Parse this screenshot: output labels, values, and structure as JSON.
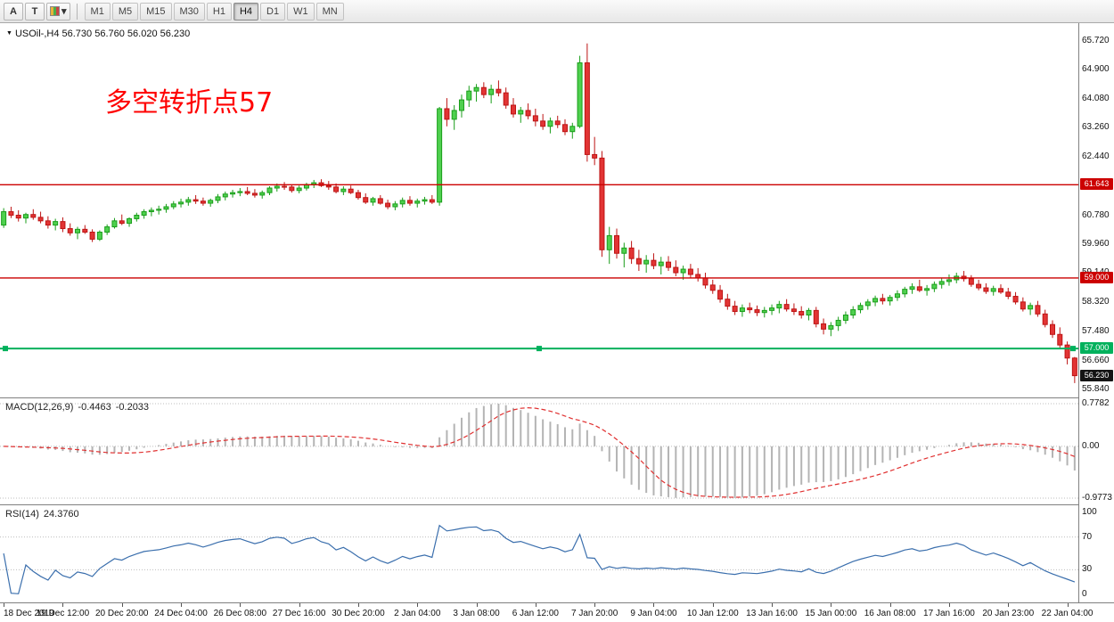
{
  "toolbar": {
    "tools": [
      {
        "id": "text-tool",
        "label": "A"
      },
      {
        "id": "crosshair-tool",
        "label": "T"
      },
      {
        "id": "objects-dropdown",
        "label": "▾"
      }
    ],
    "timeframes": [
      "M1",
      "M5",
      "M15",
      "M30",
      "H1",
      "H4",
      "D1",
      "W1",
      "MN"
    ],
    "active_timeframe": "H4"
  },
  "icons": {
    "chart_dropdown_icon": "▼",
    "dropdown_caret_icon": "▾"
  },
  "chart": {
    "title_symbol": "USOil-,H4",
    "title_ohlc": "56.730 56.760 56.020 56.230",
    "annotation": "多空转折点57"
  },
  "chart_data": {
    "type": "candlestick",
    "symbol": "USOil",
    "timeframe": "H4",
    "price_range": [
      55.613,
      66.225
    ],
    "price_axis_labels": [
      "65.720",
      "64.900",
      "64.080",
      "63.260",
      "62.440",
      "61.620",
      "60.780",
      "59.960",
      "59.140",
      "58.320",
      "57.480",
      "56.660",
      "55.840"
    ],
    "levels": [
      {
        "value": 61.643,
        "label": "61.643",
        "color": "#cc0000",
        "selected": false
      },
      {
        "value": 59.0,
        "label": "59.000",
        "color": "#cc0000",
        "selected": false
      },
      {
        "value": 57.0,
        "label": "57.000",
        "color": "#00b15c",
        "selected": true
      }
    ],
    "current_price": {
      "value": 56.23,
      "label": "56.230",
      "color": "#141414"
    },
    "bars_per_label": 8,
    "time_labels": [
      "18 Dec 2019",
      "19 Dec 12:00",
      "20 Dec 20:00",
      "24 Dec 04:00",
      "26 Dec 08:00",
      "27 Dec 16:00",
      "30 Dec 20:00",
      "2 Jan 04:00",
      "3 Jan 08:00",
      "6 Jan 12:00",
      "7 Jan 20:00",
      "9 Jan 04:00",
      "10 Jan 12:00",
      "13 Jan 16:00",
      "15 Jan 00:00",
      "16 Jan 08:00",
      "17 Jan 16:00",
      "20 Jan 23:00",
      "22 Jan 04:00"
    ],
    "candles": [
      [
        60.5,
        60.98,
        60.42,
        60.88
      ],
      [
        60.88,
        61.02,
        60.7,
        60.78
      ],
      [
        60.78,
        60.92,
        60.6,
        60.7
      ],
      [
        60.7,
        60.85,
        60.55,
        60.8
      ],
      [
        60.8,
        60.95,
        60.65,
        60.72
      ],
      [
        60.72,
        60.88,
        60.55,
        60.62
      ],
      [
        60.62,
        60.75,
        60.4,
        60.5
      ],
      [
        60.5,
        60.68,
        60.35,
        60.6
      ],
      [
        60.6,
        60.72,
        60.3,
        60.4
      ],
      [
        60.4,
        60.55,
        60.2,
        60.28
      ],
      [
        60.28,
        60.45,
        60.1,
        60.38
      ],
      [
        60.38,
        60.5,
        60.25,
        60.3
      ],
      [
        60.3,
        60.38,
        60.02,
        60.1
      ],
      [
        60.1,
        60.35,
        60.05,
        60.3
      ],
      [
        60.3,
        60.52,
        60.22,
        60.45
      ],
      [
        60.45,
        60.7,
        60.4,
        60.62
      ],
      [
        60.62,
        60.8,
        60.5,
        60.55
      ],
      [
        60.55,
        60.72,
        60.45,
        60.68
      ],
      [
        60.68,
        60.85,
        60.6,
        60.78
      ],
      [
        60.78,
        60.95,
        60.68,
        60.88
      ],
      [
        60.88,
        61.0,
        60.75,
        60.92
      ],
      [
        60.92,
        61.05,
        60.8,
        60.95
      ],
      [
        60.95,
        61.1,
        60.85,
        61.02
      ],
      [
        61.02,
        61.18,
        60.95,
        61.1
      ],
      [
        61.1,
        61.25,
        61.0,
        61.15
      ],
      [
        61.15,
        61.3,
        61.05,
        61.22
      ],
      [
        61.22,
        61.35,
        61.1,
        61.18
      ],
      [
        61.18,
        61.28,
        61.05,
        61.12
      ],
      [
        61.12,
        61.25,
        61.02,
        61.2
      ],
      [
        61.2,
        61.38,
        61.12,
        61.3
      ],
      [
        61.3,
        61.45,
        61.2,
        61.38
      ],
      [
        61.38,
        61.5,
        61.28,
        61.42
      ],
      [
        61.42,
        61.55,
        61.32,
        61.45
      ],
      [
        61.45,
        61.58,
        61.35,
        61.4
      ],
      [
        61.4,
        61.52,
        61.28,
        61.35
      ],
      [
        61.35,
        61.48,
        61.25,
        61.42
      ],
      [
        61.42,
        61.6,
        61.35,
        61.55
      ],
      [
        61.55,
        61.68,
        61.45,
        61.6
      ],
      [
        61.6,
        61.72,
        61.5,
        61.58
      ],
      [
        61.58,
        61.65,
        61.42,
        61.48
      ],
      [
        61.48,
        61.62,
        61.4,
        61.55
      ],
      [
        61.55,
        61.7,
        61.48,
        61.65
      ],
      [
        61.65,
        61.78,
        61.55,
        61.7
      ],
      [
        61.7,
        61.8,
        61.58,
        61.62
      ],
      [
        61.62,
        61.75,
        61.5,
        61.58
      ],
      [
        61.58,
        61.68,
        61.4,
        61.45
      ],
      [
        61.45,
        61.6,
        61.35,
        61.52
      ],
      [
        61.52,
        61.62,
        61.38,
        61.42
      ],
      [
        61.42,
        61.5,
        61.22,
        61.28
      ],
      [
        61.28,
        61.4,
        61.1,
        61.15
      ],
      [
        61.15,
        61.3,
        61.05,
        61.25
      ],
      [
        61.25,
        61.35,
        61.08,
        61.12
      ],
      [
        61.12,
        61.22,
        60.95,
        61.02
      ],
      [
        61.02,
        61.18,
        60.92,
        61.1
      ],
      [
        61.1,
        61.28,
        61.0,
        61.2
      ],
      [
        61.2,
        61.32,
        61.05,
        61.12
      ],
      [
        61.12,
        61.25,
        61.0,
        61.18
      ],
      [
        61.18,
        61.3,
        61.08,
        61.22
      ],
      [
        61.22,
        61.35,
        61.1,
        61.15
      ],
      [
        61.15,
        63.85,
        61.05,
        63.8
      ],
      [
        63.8,
        64.1,
        63.3,
        63.5
      ],
      [
        63.5,
        63.9,
        63.2,
        63.75
      ],
      [
        63.75,
        64.2,
        63.55,
        64.05
      ],
      [
        64.05,
        64.45,
        63.85,
        64.3
      ],
      [
        64.3,
        64.5,
        64.0,
        64.4
      ],
      [
        64.4,
        64.55,
        64.1,
        64.2
      ],
      [
        64.2,
        64.48,
        63.95,
        64.35
      ],
      [
        64.35,
        64.6,
        64.15,
        64.25
      ],
      [
        64.25,
        64.4,
        63.8,
        63.9
      ],
      [
        63.9,
        64.1,
        63.55,
        63.65
      ],
      [
        63.65,
        63.85,
        63.4,
        63.75
      ],
      [
        63.75,
        63.95,
        63.5,
        63.6
      ],
      [
        63.6,
        63.8,
        63.3,
        63.45
      ],
      [
        63.45,
        63.65,
        63.2,
        63.3
      ],
      [
        63.3,
        63.55,
        63.1,
        63.45
      ],
      [
        63.45,
        63.6,
        63.25,
        63.35
      ],
      [
        63.35,
        63.5,
        63.05,
        63.15
      ],
      [
        63.15,
        63.4,
        62.95,
        63.3
      ],
      [
        63.3,
        65.3,
        63.25,
        65.1
      ],
      [
        65.1,
        65.65,
        62.3,
        62.5
      ],
      [
        62.5,
        63.0,
        62.2,
        62.4
      ],
      [
        62.4,
        62.6,
        59.6,
        59.8
      ],
      [
        59.8,
        60.45,
        59.4,
        60.2
      ],
      [
        60.2,
        60.4,
        59.55,
        59.7
      ],
      [
        59.7,
        60.0,
        59.3,
        59.85
      ],
      [
        59.85,
        60.05,
        59.4,
        59.55
      ],
      [
        59.55,
        59.8,
        59.2,
        59.4
      ],
      [
        59.4,
        59.65,
        59.15,
        59.5
      ],
      [
        59.5,
        59.7,
        59.25,
        59.35
      ],
      [
        59.35,
        59.6,
        59.1,
        59.45
      ],
      [
        59.45,
        59.62,
        59.2,
        59.3
      ],
      [
        59.3,
        59.5,
        59.05,
        59.15
      ],
      [
        59.15,
        59.35,
        58.95,
        59.25
      ],
      [
        59.25,
        59.4,
        59.0,
        59.1
      ],
      [
        59.1,
        59.28,
        58.9,
        59.0
      ],
      [
        59.0,
        59.15,
        58.7,
        58.8
      ],
      [
        58.8,
        58.95,
        58.55,
        58.65
      ],
      [
        58.65,
        58.8,
        58.3,
        58.4
      ],
      [
        58.4,
        58.55,
        58.1,
        58.2
      ],
      [
        58.2,
        58.35,
        57.95,
        58.05
      ],
      [
        58.05,
        58.25,
        57.9,
        58.15
      ],
      [
        58.15,
        58.3,
        58.0,
        58.1
      ],
      [
        58.1,
        58.22,
        57.92,
        58.02
      ],
      [
        58.02,
        58.18,
        57.88,
        58.08
      ],
      [
        58.08,
        58.25,
        57.95,
        58.15
      ],
      [
        58.15,
        58.35,
        58.0,
        58.25
      ],
      [
        58.25,
        58.4,
        58.05,
        58.12
      ],
      [
        58.12,
        58.28,
        57.95,
        58.05
      ],
      [
        58.05,
        58.2,
        57.85,
        57.95
      ],
      [
        57.95,
        58.15,
        57.8,
        58.08
      ],
      [
        58.08,
        58.18,
        57.6,
        57.7
      ],
      [
        57.7,
        57.85,
        57.4,
        57.55
      ],
      [
        57.55,
        57.75,
        57.35,
        57.65
      ],
      [
        57.65,
        57.9,
        57.5,
        57.8
      ],
      [
        57.8,
        58.05,
        57.7,
        57.95
      ],
      [
        57.95,
        58.2,
        57.85,
        58.1
      ],
      [
        58.1,
        58.3,
        58.0,
        58.22
      ],
      [
        58.22,
        58.4,
        58.1,
        58.32
      ],
      [
        58.32,
        58.5,
        58.2,
        58.42
      ],
      [
        58.42,
        58.55,
        58.25,
        58.35
      ],
      [
        58.35,
        58.52,
        58.22,
        58.45
      ],
      [
        58.45,
        58.65,
        58.35,
        58.55
      ],
      [
        58.55,
        58.75,
        58.45,
        58.68
      ],
      [
        58.68,
        58.85,
        58.55,
        58.75
      ],
      [
        58.75,
        58.95,
        58.6,
        58.65
      ],
      [
        58.65,
        58.8,
        58.5,
        58.7
      ],
      [
        58.7,
        58.9,
        58.6,
        58.82
      ],
      [
        58.82,
        59.0,
        58.7,
        58.9
      ],
      [
        58.9,
        59.1,
        58.78,
        58.95
      ],
      [
        58.95,
        59.15,
        58.85,
        59.05
      ],
      [
        59.05,
        59.2,
        58.9,
        58.98
      ],
      [
        58.98,
        59.08,
        58.75,
        58.82
      ],
      [
        58.82,
        58.95,
        58.65,
        58.72
      ],
      [
        58.72,
        58.85,
        58.55,
        58.62
      ],
      [
        58.62,
        58.78,
        58.5,
        58.7
      ],
      [
        58.7,
        58.82,
        58.55,
        58.6
      ],
      [
        58.6,
        58.72,
        58.4,
        58.48
      ],
      [
        58.48,
        58.6,
        58.25,
        58.32
      ],
      [
        58.32,
        58.45,
        58.05,
        58.12
      ],
      [
        58.12,
        58.3,
        57.95,
        58.22
      ],
      [
        58.22,
        58.35,
        57.9,
        57.98
      ],
      [
        57.98,
        58.1,
        57.6,
        57.68
      ],
      [
        57.68,
        57.8,
        57.3,
        57.4
      ],
      [
        57.4,
        57.6,
        57.0,
        57.1
      ],
      [
        57.1,
        57.2,
        56.55,
        56.73
      ],
      [
        56.73,
        56.76,
        56.02,
        56.23
      ]
    ]
  },
  "macd": {
    "name": "MACD(12,26,9)",
    "value1": "-0.4463",
    "value2": "-0.2033",
    "axis_labels": [
      "0.7782",
      "0.00",
      "-0.9773"
    ],
    "fast": 12,
    "slow": 26,
    "signal": 9
  },
  "rsi": {
    "name": "RSI(14)",
    "value": "24.3760",
    "axis_labels": [
      "100",
      "70",
      "30",
      "0"
    ],
    "levels": [
      70,
      30
    ],
    "period": 14
  },
  "colors": {
    "bull": "#4fd04f",
    "bull_border": "#1a9e1a",
    "bear": "#e23434",
    "bear_border": "#bd1414",
    "macd_hist": "#b4b4b4",
    "macd_signal": "#e03030",
    "rsi_line": "#3b6fad",
    "annotation": "#ff0000",
    "grid_dotted": "#bdbdbd"
  }
}
